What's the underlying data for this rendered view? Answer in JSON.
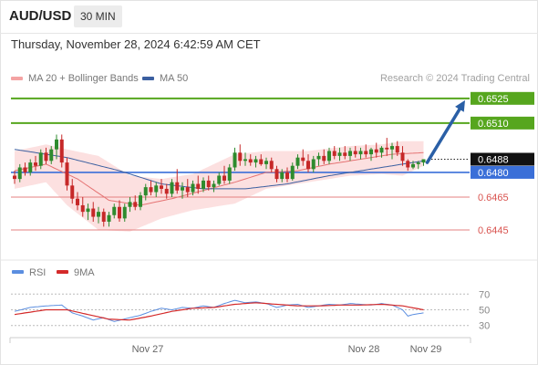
{
  "header": {
    "symbol": "AUD/USD",
    "timeframe": "30 MIN",
    "timestamp": "Thursday, November 28, 2024 6:42:59 AM CET"
  },
  "legend": {
    "items": [
      {
        "label": "MA 20 + Bollinger Bands",
        "color": "#f4a3a3"
      },
      {
        "label": "MA 50",
        "color": "#3b5fa0"
      }
    ],
    "credit": "Research © 2024 Trading Central"
  },
  "colors": {
    "bullish": "#2e8b2e",
    "bearish": "#c62828",
    "pivot": "#3a6fd8",
    "support": "#e58080",
    "resistance": "#56a61e",
    "price_tag": "#111111",
    "arrow": "#2a5fa6",
    "bollinger_fill": "#fbdada"
  },
  "chart_data": [
    {
      "type": "candlestick",
      "title": "AUD/USD 30 MIN",
      "x_ticks": [
        "Nov 27",
        "Nov 28",
        "Nov 29"
      ],
      "y_range": [
        0.6435,
        0.6531
      ],
      "grid": false,
      "levels": [
        {
          "name": "resistance",
          "value": 0.6525,
          "label": "0.6525",
          "style": "target"
        },
        {
          "name": "resistance",
          "value": 0.651,
          "label": "0.6510",
          "style": "target"
        },
        {
          "name": "last price",
          "value": 0.6488,
          "label": "0.6488",
          "style": "price"
        },
        {
          "name": "pivot",
          "value": 0.648,
          "label": "0.6480",
          "style": "pivot"
        },
        {
          "name": "support",
          "value": 0.6465,
          "label": "0.6465",
          "style": "support"
        },
        {
          "name": "support",
          "value": 0.6445,
          "label": "0.6445",
          "style": "support"
        }
      ],
      "ohlc": [
        [
          0.6478,
          0.6481,
          0.6473,
          0.6476
        ],
        [
          0.6476,
          0.6485,
          0.6474,
          0.6483
        ],
        [
          0.6483,
          0.6486,
          0.6478,
          0.648
        ],
        [
          0.648,
          0.6488,
          0.6478,
          0.6486
        ],
        [
          0.6486,
          0.649,
          0.6481,
          0.6484
        ],
        [
          0.6484,
          0.6494,
          0.6482,
          0.6492
        ],
        [
          0.6492,
          0.6495,
          0.6485,
          0.6487
        ],
        [
          0.6487,
          0.6496,
          0.6485,
          0.6494
        ],
        [
          0.6494,
          0.6503,
          0.6488,
          0.65
        ],
        [
          0.65,
          0.6503,
          0.6483,
          0.6486
        ],
        [
          0.6486,
          0.6489,
          0.6469,
          0.6472
        ],
        [
          0.6472,
          0.6476,
          0.6461,
          0.6464
        ],
        [
          0.6464,
          0.6468,
          0.6457,
          0.646
        ],
        [
          0.646,
          0.6465,
          0.6453,
          0.6456
        ],
        [
          0.6456,
          0.6461,
          0.6451,
          0.6458
        ],
        [
          0.6458,
          0.6462,
          0.645,
          0.6453
        ],
        [
          0.6453,
          0.6459,
          0.6449,
          0.6456
        ],
        [
          0.6456,
          0.6458,
          0.6447,
          0.645
        ],
        [
          0.645,
          0.6456,
          0.6447,
          0.6454
        ],
        [
          0.6454,
          0.6461,
          0.6452,
          0.6459
        ],
        [
          0.6459,
          0.6463,
          0.645,
          0.6452
        ],
        [
          0.6452,
          0.6461,
          0.645,
          0.6459
        ],
        [
          0.6459,
          0.6465,
          0.6456,
          0.6462
        ],
        [
          0.6462,
          0.6466,
          0.6457,
          0.6459
        ],
        [
          0.6459,
          0.6468,
          0.6457,
          0.6466
        ],
        [
          0.6466,
          0.6473,
          0.6463,
          0.6471
        ],
        [
          0.6471,
          0.6475,
          0.6466,
          0.6468
        ],
        [
          0.6468,
          0.6474,
          0.6465,
          0.6472
        ],
        [
          0.6472,
          0.6476,
          0.6467,
          0.647
        ],
        [
          0.647,
          0.6473,
          0.6464,
          0.6467
        ],
        [
          0.6467,
          0.6476,
          0.6465,
          0.6474
        ],
        [
          0.6474,
          0.6482,
          0.6467,
          0.6469
        ],
        [
          0.6469,
          0.6474,
          0.6464,
          0.6471
        ],
        [
          0.6471,
          0.6476,
          0.6465,
          0.6468
        ],
        [
          0.6468,
          0.6475,
          0.6466,
          0.6473
        ],
        [
          0.6473,
          0.6478,
          0.6467,
          0.647
        ],
        [
          0.647,
          0.6477,
          0.6468,
          0.6475
        ],
        [
          0.6475,
          0.6478,
          0.6469,
          0.6471
        ],
        [
          0.6471,
          0.6475,
          0.6468,
          0.6473
        ],
        [
          0.6473,
          0.648,
          0.6472,
          0.6478
        ],
        [
          0.6478,
          0.6484,
          0.6473,
          0.6475
        ],
        [
          0.6475,
          0.6485,
          0.6473,
          0.6483
        ],
        [
          0.6483,
          0.6495,
          0.6481,
          0.6492
        ],
        [
          0.6492,
          0.6497,
          0.6484,
          0.6487
        ],
        [
          0.6487,
          0.6492,
          0.6484,
          0.6488
        ],
        [
          0.6488,
          0.6491,
          0.6484,
          0.6486
        ],
        [
          0.6486,
          0.649,
          0.6483,
          0.6488
        ],
        [
          0.6488,
          0.6491,
          0.6484,
          0.6485
        ],
        [
          0.6485,
          0.6489,
          0.6482,
          0.6487
        ],
        [
          0.6487,
          0.6489,
          0.648,
          0.6482
        ],
        [
          0.6482,
          0.6484,
          0.6474,
          0.6476
        ],
        [
          0.6476,
          0.6482,
          0.6474,
          0.648
        ],
        [
          0.648,
          0.6483,
          0.6474,
          0.6476
        ],
        [
          0.6476,
          0.6486,
          0.6475,
          0.6484
        ],
        [
          0.6484,
          0.6491,
          0.6482,
          0.6489
        ],
        [
          0.6489,
          0.6494,
          0.6484,
          0.6487
        ],
        [
          0.6487,
          0.6491,
          0.648,
          0.6482
        ],
        [
          0.6482,
          0.649,
          0.648,
          0.6488
        ],
        [
          0.6488,
          0.6492,
          0.6484,
          0.649
        ],
        [
          0.649,
          0.6494,
          0.6485,
          0.6487
        ],
        [
          0.6487,
          0.6495,
          0.6485,
          0.6493
        ],
        [
          0.6493,
          0.6496,
          0.6488,
          0.649
        ],
        [
          0.649,
          0.6495,
          0.6487,
          0.6492
        ],
        [
          0.6492,
          0.6496,
          0.6488,
          0.649
        ],
        [
          0.649,
          0.6495,
          0.6487,
          0.6493
        ],
        [
          0.6493,
          0.6496,
          0.6489,
          0.6491
        ],
        [
          0.6491,
          0.6495,
          0.6488,
          0.6493
        ],
        [
          0.6493,
          0.6497,
          0.6489,
          0.6491
        ],
        [
          0.6491,
          0.6495,
          0.6487,
          0.6494
        ],
        [
          0.6494,
          0.6498,
          0.6489,
          0.6492
        ],
        [
          0.6492,
          0.6496,
          0.6489,
          0.6495
        ],
        [
          0.6495,
          0.6501,
          0.649,
          0.6494
        ],
        [
          0.6494,
          0.6498,
          0.6488,
          0.6496
        ],
        [
          0.6496,
          0.6499,
          0.649,
          0.6492
        ],
        [
          0.6492,
          0.6496,
          0.6484,
          0.6487
        ],
        [
          0.6487,
          0.6488,
          0.6481,
          0.6483
        ],
        [
          0.6483,
          0.6487,
          0.6482,
          0.6485
        ],
        [
          0.6485,
          0.6487,
          0.6482,
          0.6486
        ],
        [
          0.6486,
          0.6488,
          0.6484,
          0.6488
        ]
      ],
      "ma20": [
        [
          0,
          0.6481
        ],
        [
          6,
          0.6485
        ],
        [
          12,
          0.6476
        ],
        [
          18,
          0.6463
        ],
        [
          24,
          0.646
        ],
        [
          30,
          0.6464
        ],
        [
          36,
          0.6469
        ],
        [
          42,
          0.6474
        ],
        [
          48,
          0.648
        ],
        [
          54,
          0.6481
        ],
        [
          60,
          0.6485
        ],
        [
          66,
          0.6488
        ],
        [
          72,
          0.6491
        ],
        [
          78,
          0.6492
        ]
      ],
      "ma50": [
        [
          0,
          0.6494
        ],
        [
          10,
          0.6489
        ],
        [
          20,
          0.6481
        ],
        [
          28,
          0.6473
        ],
        [
          36,
          0.647
        ],
        [
          44,
          0.647
        ],
        [
          52,
          0.6473
        ],
        [
          60,
          0.6478
        ],
        [
          68,
          0.6482
        ],
        [
          74,
          0.6485
        ],
        [
          78,
          0.6487
        ]
      ],
      "bollinger_upper": [
        [
          0,
          0.6493
        ],
        [
          6,
          0.6497
        ],
        [
          10,
          0.6494
        ],
        [
          16,
          0.649
        ],
        [
          22,
          0.6478
        ],
        [
          28,
          0.6476
        ],
        [
          34,
          0.6479
        ],
        [
          42,
          0.6491
        ],
        [
          48,
          0.6493
        ],
        [
          56,
          0.6493
        ],
        [
          64,
          0.6496
        ],
        [
          70,
          0.6497
        ],
        [
          74,
          0.6499
        ],
        [
          78,
          0.6499
        ]
      ],
      "bollinger_lower": [
        [
          0,
          0.647
        ],
        [
          6,
          0.6474
        ],
        [
          10,
          0.646
        ],
        [
          16,
          0.6445
        ],
        [
          22,
          0.6444
        ],
        [
          28,
          0.6452
        ],
        [
          34,
          0.6457
        ],
        [
          42,
          0.6461
        ],
        [
          48,
          0.647
        ],
        [
          56,
          0.6474
        ],
        [
          64,
          0.6478
        ],
        [
          70,
          0.6479
        ],
        [
          74,
          0.6478
        ],
        [
          78,
          0.6484
        ]
      ],
      "forecast_arrow": {
        "from": 0.6486,
        "to": 0.6525
      }
    },
    {
      "type": "line",
      "y_ticks": [
        70,
        50,
        30
      ],
      "y_range": [
        25,
        75
      ],
      "series": [
        {
          "name": "RSI",
          "color": "#5b8ee0",
          "points": [
            [
              0,
              48
            ],
            [
              3,
              53
            ],
            [
              6,
              55
            ],
            [
              9,
              56
            ],
            [
              11,
              46
            ],
            [
              13,
              42
            ],
            [
              15,
              37
            ],
            [
              17,
              40
            ],
            [
              19,
              35
            ],
            [
              22,
              40
            ],
            [
              24,
              43
            ],
            [
              26,
              48
            ],
            [
              28,
              52
            ],
            [
              30,
              50
            ],
            [
              32,
              53
            ],
            [
              34,
              52
            ],
            [
              36,
              55
            ],
            [
              38,
              53
            ],
            [
              40,
              58
            ],
            [
              42,
              62
            ],
            [
              44,
              59
            ],
            [
              46,
              60
            ],
            [
              48,
              58
            ],
            [
              50,
              53
            ],
            [
              52,
              56
            ],
            [
              54,
              57
            ],
            [
              56,
              53
            ],
            [
              58,
              55
            ],
            [
              60,
              57
            ],
            [
              62,
              56
            ],
            [
              64,
              58
            ],
            [
              66,
              57
            ],
            [
              68,
              56
            ],
            [
              70,
              58
            ],
            [
              72,
              56
            ],
            [
              74,
              50
            ],
            [
              75,
              42
            ],
            [
              76,
              44
            ],
            [
              78,
              46
            ]
          ]
        },
        {
          "name": "9MA",
          "color": "#d42a2a",
          "points": [
            [
              0,
              44
            ],
            [
              6,
              50
            ],
            [
              10,
              50
            ],
            [
              14,
              44
            ],
            [
              18,
              38
            ],
            [
              22,
              37
            ],
            [
              26,
              42
            ],
            [
              30,
              48
            ],
            [
              34,
              52
            ],
            [
              38,
              53
            ],
            [
              42,
              57
            ],
            [
              46,
              59
            ],
            [
              50,
              57
            ],
            [
              54,
              55
            ],
            [
              58,
              55
            ],
            [
              62,
              56
            ],
            [
              66,
              56
            ],
            [
              70,
              57
            ],
            [
              74,
              55
            ],
            [
              78,
              50
            ]
          ]
        }
      ]
    }
  ],
  "rsi_panel": {
    "legend": [
      {
        "label": "RSI",
        "color": "#5b8ee0"
      },
      {
        "label": "9MA",
        "color": "#d42a2a"
      }
    ]
  }
}
